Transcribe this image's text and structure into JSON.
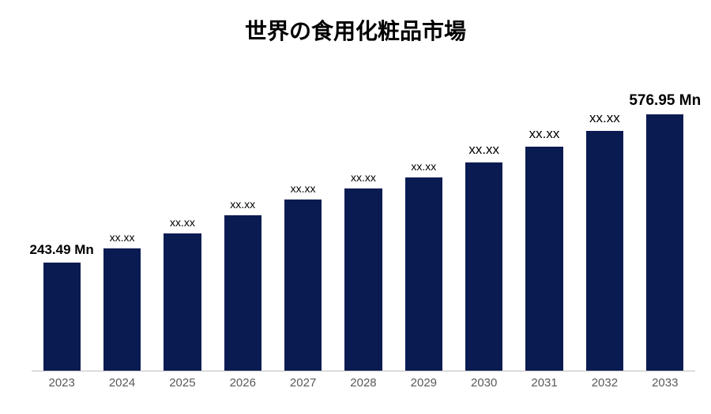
{
  "chart": {
    "type": "bar",
    "title": "世界の食用化粧品市場",
    "title_fontsize": 28,
    "title_color": "#000000",
    "background_color": "#ffffff",
    "bar_color": "#0a1b52",
    "axis_line_color": "#bfbfbf",
    "axis_line_width": 1,
    "tick_color": "#595959",
    "tick_fontsize": 15,
    "label_color": "#000000",
    "bar_width_ratio": 0.62,
    "ylim_max": 640,
    "categories": [
      "2023",
      "2024",
      "2025",
      "2026",
      "2027",
      "2028",
      "2029",
      "2030",
      "2031",
      "2032",
      "2033"
    ],
    "values": [
      243.49,
      275,
      310,
      350,
      385,
      410,
      435,
      470,
      505,
      540,
      576.95
    ],
    "value_labels": [
      "243.49 Mn",
      "xx.xx",
      "xx.xx",
      "xx.xx",
      "xx.xx",
      "xx.xx",
      "xx.xx",
      "xx.xx",
      "xx.xx",
      "xx.xx",
      "576.95 Mn"
    ],
    "label_fontsizes": [
      17,
      14,
      14,
      14,
      14,
      14,
      14,
      17,
      17,
      17,
      19
    ],
    "label_weights": [
      700,
      400,
      400,
      400,
      400,
      400,
      400,
      400,
      400,
      400,
      700
    ]
  }
}
